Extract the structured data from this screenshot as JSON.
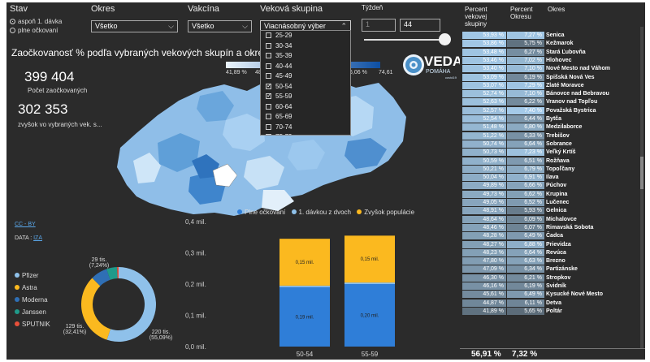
{
  "filters": {
    "stav": {
      "label": "Stav",
      "options": [
        "aspoň 1. dávka",
        "plne očkovaní"
      ],
      "selected": 0
    },
    "okres": {
      "label": "Okres",
      "value": "Všetko"
    },
    "vakcina": {
      "label": "Vakcína",
      "value": "Všetko"
    },
    "vekova": {
      "label": "Veková skupina",
      "value": "Viacnásobný výber",
      "options": [
        {
          "label": "25-29",
          "checked": false
        },
        {
          "label": "30-34",
          "checked": false
        },
        {
          "label": "35-39",
          "checked": false
        },
        {
          "label": "40-44",
          "checked": false
        },
        {
          "label": "45-49",
          "checked": false
        },
        {
          "label": "50-54",
          "checked": true
        },
        {
          "label": "55-59",
          "checked": true
        },
        {
          "label": "60-64",
          "checked": false
        },
        {
          "label": "65-69",
          "checked": false
        },
        {
          "label": "70-74",
          "checked": false
        },
        {
          "label": "75-79",
          "checked": false
        }
      ]
    },
    "tyzden": {
      "label": "Týždeň",
      "min": "1",
      "max": "44"
    }
  },
  "main": {
    "title": "Zaočkovanosť % podľa vybraných vekových skupín a okresu",
    "vaccinated_count": "399 404",
    "vaccinated_label": "Počet zaočkovaných",
    "remaining_count": "302 353",
    "remaining_label": "zvyšok vo vybraných vek. s...",
    "scale_left": "41,89 %",
    "scale_mid_left": "48",
    "scale_mid_right": "6,06 %",
    "scale_right": "74,61",
    "logo_text": "VEDA",
    "logo_sub": "POMÁHA",
    "logo_sub2": "covid19",
    "cc_link": "CC - BY",
    "data_label": "DATA :",
    "data_link": "IZA"
  },
  "colors": {
    "accent_blue": "#2f7ed8",
    "light_blue": "#8fc1ea",
    "yellow": "#fbb91f",
    "table_blue": "#a8d0f0"
  },
  "donut_legend": [
    {
      "name": "Pfizer",
      "color": "#8fc1ea"
    },
    {
      "name": "Astra",
      "color": "#fbb91f"
    },
    {
      "name": "Moderna",
      "color": "#2f6fb5"
    },
    {
      "name": "Janssen",
      "color": "#1f9a8a"
    },
    {
      "name": "SPUTNIK",
      "color": "#e8503a"
    }
  ],
  "donut_labels": {
    "pfizer_value": "220 tis.",
    "pfizer_pct": "(55,09%)",
    "astra_value": "129 tis.",
    "astra_pct": "(32,41%)",
    "moderna_value": "29 tis.",
    "moderna_pct": "(7,24%)"
  },
  "chart_legend": [
    "Plne očkovaní",
    "1. dávkou z dvoch",
    "Zvyšok populácie"
  ],
  "chart_data": [
    {
      "type": "pie",
      "labels": [
        "Pfizer",
        "Astra",
        "Moderna",
        "Janssen",
        "SPUTNIK"
      ],
      "values": [
        55.09,
        32.41,
        7.24,
        4.6,
        0.66
      ]
    },
    {
      "type": "bar",
      "stacked": true,
      "categories": [
        "50-54",
        "55-59"
      ],
      "series": [
        {
          "name": "Plne očkovaní",
          "values": [
            0.19,
            0.2
          ]
        },
        {
          "name": "1. dávkou z dvoch",
          "values": [
            0.005,
            0.005
          ]
        },
        {
          "name": "Zvyšok populácie",
          "values": [
            0.15,
            0.15
          ]
        }
      ],
      "data_labels": {
        "plne": [
          "0,19 mil.",
          "0,20 mil."
        ],
        "zvysok": [
          "0,15 mil.",
          "0,15 mil."
        ]
      },
      "y_ticks": [
        "0,4 mil.",
        "0,3 mil.",
        "0,2 mil.",
        "0,1 mil.",
        "0,0 mil."
      ],
      "ylim": [
        0,
        0.4
      ]
    }
  ],
  "table": {
    "headers": [
      "Percent vekovej skupiny",
      "Percent Okresu",
      "Okres"
    ],
    "rows": [
      [
        "53,93 %",
        "7,27 %",
        "Senica"
      ],
      [
        "53,86 %",
        "5,75 %",
        "Kežmarok"
      ],
      [
        "53,48 %",
        "6,27 %",
        "Stará Ľubovňa"
      ],
      [
        "53,46 %",
        "7,02 %",
        "Hlohovec"
      ],
      [
        "53,40 %",
        "7,10 %",
        "Nové Mesto nad Váhom"
      ],
      [
        "53,09 %",
        "6,19 %",
        "Spišská Nová Ves"
      ],
      [
        "53,07 %",
        "7,29 %",
        "Zlaté Moravce"
      ],
      [
        "52,74 %",
        "7,10 %",
        "Bánovce nad Bebravou"
      ],
      [
        "52,63 %",
        "6,22 %",
        "Vranov nad Topľou"
      ],
      [
        "52,57 %",
        "7,40 %",
        "Považská Bystrica"
      ],
      [
        "52,54 %",
        "6,44 %",
        "Bytča"
      ],
      [
        "51,48 %",
        "6,80 %",
        "Medzilaborce"
      ],
      [
        "51,22 %",
        "6,33 %",
        "Trebišov"
      ],
      [
        "50,74 %",
        "6,64 %",
        "Sobrance"
      ],
      [
        "50,73 %",
        "7,23 %",
        "Veľký Krtíš"
      ],
      [
        "50,59 %",
        "6,51 %",
        "Rožňava"
      ],
      [
        "50,21 %",
        "6,79 %",
        "Topoľčany"
      ],
      [
        "50,04 %",
        "6,91 %",
        "Ilava"
      ],
      [
        "49,89 %",
        "6,66 %",
        "Púchov"
      ],
      [
        "49,73 %",
        "6,62 %",
        "Krupina"
      ],
      [
        "49,05 %",
        "6,52 %",
        "Lučenec"
      ],
      [
        "48,91 %",
        "5,93 %",
        "Gelnica"
      ],
      [
        "48,64 %",
        "6,09 %",
        "Michalovce"
      ],
      [
        "48,46 %",
        "6,07 %",
        "Rimavská Sobota"
      ],
      [
        "48,28 %",
        "6,49 %",
        "Čadca"
      ],
      [
        "48,27 %",
        "6,88 %",
        "Prievidza"
      ],
      [
        "48,23 %",
        "6,64 %",
        "Revúca"
      ],
      [
        "47,80 %",
        "6,63 %",
        "Brezno"
      ],
      [
        "47,09 %",
        "6,34 %",
        "Partizánske"
      ],
      [
        "46,30 %",
        "6,21 %",
        "Stropkov"
      ],
      [
        "46,16 %",
        "6,19 %",
        "Svidník"
      ],
      [
        "45,61 %",
        "6,49 %",
        "Kysucké Nové Mesto"
      ],
      [
        "44,87 %",
        "6,11 %",
        "Detva"
      ],
      [
        "41,89 %",
        "5,65 %",
        "Poltár"
      ]
    ],
    "total_pct": "56,91 %",
    "total_okres": "7,32 %"
  }
}
